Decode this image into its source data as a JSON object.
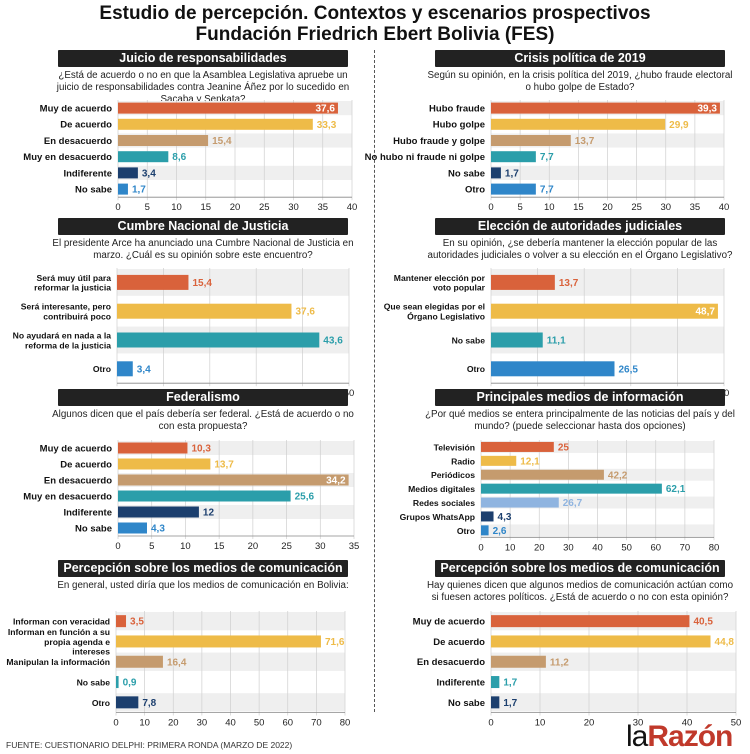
{
  "title_line1": "Estudio de percepción. Contextos y escenarios prospectivos",
  "title_line2": "Fundación Friedrich Ebert Bolivia (FES)",
  "footer": "FUENTE: CUESTIONARIO DELPHI: PRIMERA RONDA (MARZO DE 2022)",
  "brand": {
    "part1": "la",
    "part2": "Razón"
  },
  "colors": {
    "orange": "#d9623b",
    "yellow": "#eebb48",
    "tan": "#c59b6e",
    "teal": "#2b9eaa",
    "navy": "#1c3f6e",
    "blue": "#2f86c9",
    "lightblue": "#8fb4e0",
    "stripe": "#efefef"
  },
  "chart_data": [
    {
      "type": "bar",
      "title": "Juicio de responsabilidades",
      "question": "¿Está de acuerdo o no en que la Asamblea Legislativa apruebe un juicio de responsabilidades contra Jeanine Áñez por lo sucedido en Sacaba y Senkata?",
      "categories": [
        "Muy de acuerdo",
        "De acuerdo",
        "En desacuerdo",
        "Muy en desacuerdo",
        "Indiferente",
        "No sabe"
      ],
      "values": [
        37.6,
        33.3,
        15.4,
        8.6,
        3.4,
        1.7
      ],
      "value_labels": [
        "37,6",
        "33,3",
        "15,4",
        "8,6",
        "3,4",
        "1,7"
      ],
      "bar_colors": [
        "orange",
        "yellow",
        "tan",
        "teal",
        "navy",
        "blue"
      ],
      "xlim": [
        0,
        40
      ],
      "ticks": [
        0,
        5,
        10,
        15,
        20,
        25,
        30,
        35,
        40
      ]
    },
    {
      "type": "bar",
      "title": "Crisis política de 2019",
      "question": "Según su opinión, en la crisis política del 2019, ¿hubo fraude electoral o hubo golpe de Estado?",
      "categories": [
        "Hubo fraude",
        "Hubo golpe",
        "Hubo fraude y golpe",
        "No hubo ni fraude ni golpe",
        "No sabe",
        "Otro"
      ],
      "values": [
        39.3,
        29.9,
        13.7,
        7.7,
        1.7,
        7.7
      ],
      "value_labels": [
        "39,3",
        "29,9",
        "13,7",
        "7,7",
        "1,7",
        "7,7"
      ],
      "bar_colors": [
        "orange",
        "yellow",
        "tan",
        "teal",
        "navy",
        "blue"
      ],
      "xlim": [
        0,
        40
      ],
      "ticks": [
        0,
        5,
        10,
        15,
        20,
        25,
        30,
        35,
        40
      ]
    },
    {
      "type": "bar",
      "title": "Cumbre Nacional de Justicia",
      "question": "El presidente Arce ha anunciado una Cumbre Nacional de Justicia en marzo. ¿Cuál es su opinión sobre este encuentro?",
      "categories": [
        "Será muy útil para reformar la justicia",
        "Será interesante, pero contribuirá poco",
        "No ayudará en nada a la reforma de la justicia",
        "Otro"
      ],
      "values": [
        15.4,
        37.6,
        43.6,
        3.4
      ],
      "value_labels": [
        "15,4",
        "37,6",
        "43,6",
        "3,4"
      ],
      "bar_colors": [
        "orange",
        "yellow",
        "teal",
        "blue"
      ],
      "xlim": [
        0,
        50
      ],
      "ticks": [
        0,
        10,
        20,
        30,
        40,
        50
      ]
    },
    {
      "type": "bar",
      "title": "Elección de autoridades judiciales",
      "question": "En su opinión, ¿se debería mantener la elección popular de las autoridades judiciales o volver a su elección en el Órgano Legislativo?",
      "categories": [
        "Mantener elección por voto popular",
        "Que sean elegidas por el Órgano Legislativo",
        "No sabe",
        "Otro"
      ],
      "values": [
        13.7,
        48.7,
        11.1,
        26.5
      ],
      "value_labels": [
        "13,7",
        "48,7",
        "11,1",
        "26,5"
      ],
      "bar_colors": [
        "orange",
        "yellow",
        "teal",
        "blue"
      ],
      "xlim": [
        0,
        50
      ],
      "ticks": [
        0,
        10,
        20,
        30,
        40,
        50
      ]
    },
    {
      "type": "bar",
      "title": "Federalismo",
      "question": "Algunos dicen que el país debería ser federal. ¿Está de acuerdo o no con esta propuesta?",
      "categories": [
        "Muy de acuerdo",
        "De acuerdo",
        "En desacuerdo",
        "Muy en desacuerdo",
        "Indiferente",
        "No sabe"
      ],
      "values": [
        10.3,
        13.7,
        34.2,
        25.6,
        12,
        4.3
      ],
      "value_labels": [
        "10,3",
        "13,7",
        "34,2",
        "25,6",
        "12",
        "4,3"
      ],
      "bar_colors": [
        "orange",
        "yellow",
        "tan",
        "teal",
        "navy",
        "blue"
      ],
      "xlim": [
        0,
        35
      ],
      "ticks": [
        0,
        5,
        10,
        15,
        20,
        25,
        30,
        35
      ]
    },
    {
      "type": "bar",
      "title": "Principales medios de información",
      "question": "¿Por qué medios se entera principalmente de las noticias del país y del mundo? (puede seleccionar hasta dos opciones)",
      "categories": [
        "Televisión",
        "Radio",
        "Periódicos",
        "Medios digitales",
        "Redes sociales",
        "Grupos WhatsApp",
        "Otro"
      ],
      "values": [
        25,
        12.1,
        42.2,
        62.1,
        26.7,
        4.3,
        2.6
      ],
      "value_labels": [
        "25",
        "12,1",
        "42,2",
        "62,1",
        "26,7",
        "4,3",
        "2,6"
      ],
      "bar_colors": [
        "orange",
        "yellow",
        "tan",
        "teal",
        "lightblue",
        "navy",
        "blue"
      ],
      "xlim": [
        0,
        80
      ],
      "ticks": [
        0,
        10,
        20,
        30,
        40,
        50,
        60,
        70,
        80
      ]
    },
    {
      "type": "bar",
      "title": "Percepción sobre los medios de comunicación",
      "question": "En general, usted diría que los medios de comunicación en Bolivia:",
      "categories": [
        "Informan con veracidad",
        "Informan en función a su propia agenda e intereses",
        "Manipulan la información",
        "No sabe",
        "Otro"
      ],
      "values": [
        3.5,
        71.6,
        16.4,
        0.9,
        7.8
      ],
      "value_labels": [
        "3,5",
        "71,6",
        "16,4",
        "0,9",
        "7,8"
      ],
      "bar_colors": [
        "orange",
        "yellow",
        "tan",
        "teal",
        "navy"
      ],
      "xlim": [
        0,
        80
      ],
      "ticks": [
        0,
        10,
        20,
        30,
        40,
        50,
        60,
        70,
        80
      ]
    },
    {
      "type": "bar",
      "title": "Percepción sobre los medios de comunicación",
      "question": "Hay quienes dicen que algunos medios de comunicación actúan como si fuesen actores políticos. ¿Está de acuerdo o no con esta opinión?",
      "categories": [
        "Muy de acuerdo",
        "De acuerdo",
        "En desacuerdo",
        "Indiferente",
        "No sabe"
      ],
      "values": [
        40.5,
        44.8,
        11.2,
        1.7,
        1.7
      ],
      "value_labels": [
        "40,5",
        "44,8",
        "11,2",
        "1,7",
        "1,7"
      ],
      "bar_colors": [
        "orange",
        "yellow",
        "tan",
        "teal",
        "navy"
      ],
      "xlim": [
        0,
        50
      ],
      "ticks": [
        0,
        10,
        20,
        30,
        40,
        50
      ]
    }
  ]
}
